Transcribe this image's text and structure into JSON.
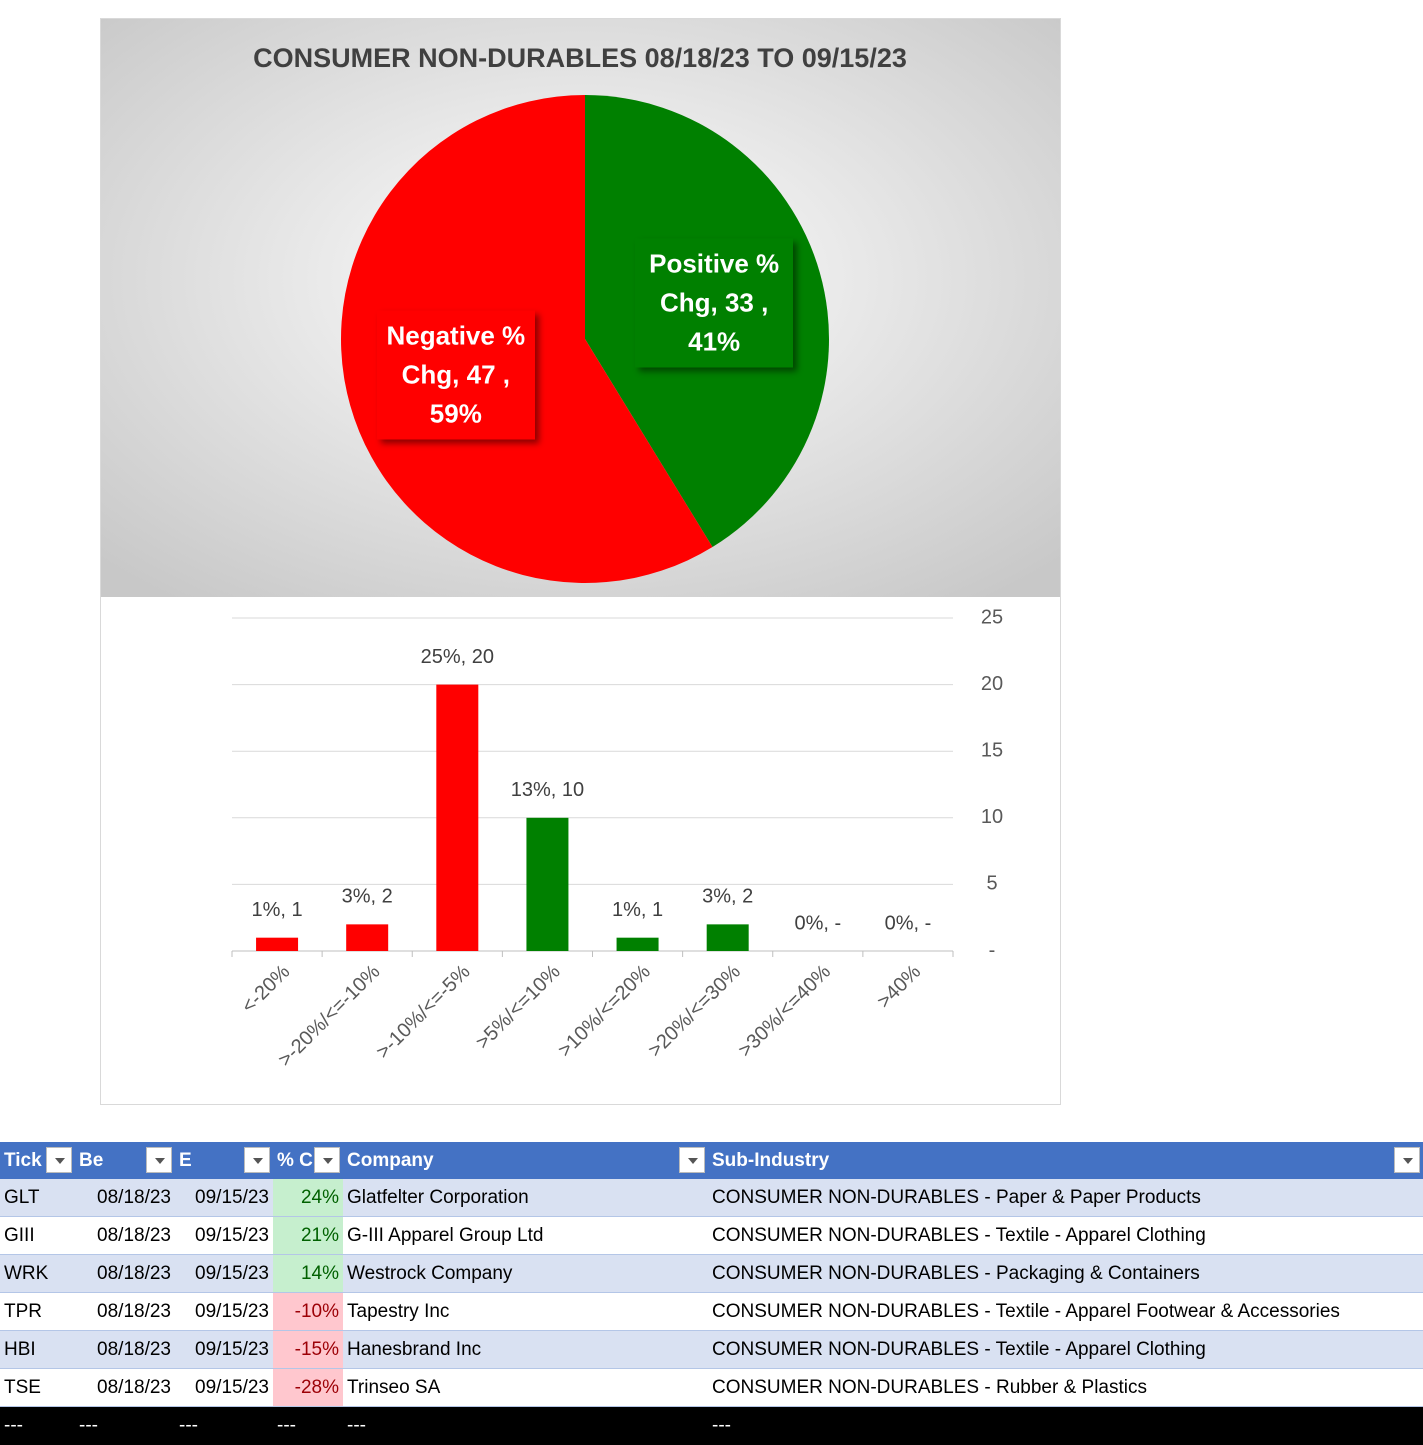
{
  "chart_data": [
    {
      "type": "pie",
      "title": "CONSUMER NON-DURABLES 08/18/23 TO 09/15/23",
      "categories": [
        "Positive % Chg",
        "Negative % Chg"
      ],
      "values": [
        33,
        47
      ],
      "value_labels": [
        "Positive % Chg,  33 , 41%",
        "Negative % Chg,  47 , 59%"
      ],
      "colors": [
        "#008000",
        "#ff0000"
      ]
    },
    {
      "type": "bar",
      "categories": [
        "<-20%",
        ">-20%/<=-10%",
        ">-10%/<=-5%",
        ">5%/<=10%",
        ">10%/<=20%",
        ">20%/<=30%",
        ">30%/<=40%",
        ">40%"
      ],
      "values": [
        1,
        2,
        20,
        10,
        1,
        2,
        0,
        0
      ],
      "value_labels": [
        "1%,  1",
        "3%,  2",
        "25%,  20",
        "13%,  10",
        "1%,  1",
        "3%,  2",
        "0%,  -",
        "0%,  -"
      ],
      "colors": [
        "#ff0000",
        "#ff0000",
        "#ff0000",
        "#008000",
        "#008000",
        "#008000",
        "#008000",
        "#008000"
      ],
      "ylim": [
        0,
        25
      ],
      "yticks": [
        {
          "value": 0,
          "label": "-"
        },
        5,
        10,
        15,
        20,
        25
      ],
      "grid": true,
      "y_axis_side": "right"
    }
  ],
  "table": {
    "columns": [
      "Tick",
      "Be",
      "E",
      "% C",
      "Company",
      "Sub-Industry"
    ],
    "rows": [
      [
        "GLT",
        "08/18/23",
        "09/15/23",
        "24%",
        "Glatfelter Corporation",
        "CONSUMER NON-DURABLES - Paper & Paper Products"
      ],
      [
        "GIII",
        "08/18/23",
        "09/15/23",
        "21%",
        "G-III Apparel Group Ltd",
        "CONSUMER NON-DURABLES - Textile - Apparel Clothing"
      ],
      [
        "WRK",
        "08/18/23",
        "09/15/23",
        "14%",
        "Westrock Company",
        "CONSUMER NON-DURABLES - Packaging & Containers"
      ],
      [
        "TPR",
        "08/18/23",
        "09/15/23",
        "-10%",
        "Tapestry Inc",
        "CONSUMER NON-DURABLES - Textile - Apparel Footwear & Accessories"
      ],
      [
        "HBI",
        "08/18/23",
        "09/15/23",
        "-15%",
        "Hanesbrand Inc",
        "CONSUMER NON-DURABLES - Textile - Apparel Clothing"
      ],
      [
        "TSE",
        "08/18/23",
        "09/15/23",
        "-28%",
        "Trinseo SA",
        "CONSUMER NON-DURABLES - Rubber & Plastics"
      ]
    ],
    "footer": [
      "---",
      "---",
      "---",
      "---",
      "---",
      "---"
    ]
  }
}
